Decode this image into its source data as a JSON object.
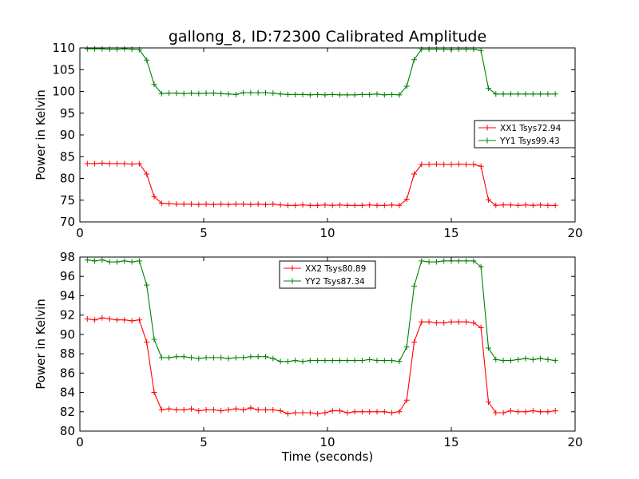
{
  "chart_data": [
    {
      "type": "line",
      "title": "gallong_8, ID:72300 Calibrated Amplitude",
      "xlabel": "",
      "ylabel": "Power in Kelvin",
      "xlim": [
        0,
        20
      ],
      "ylim": [
        70,
        110
      ],
      "xticks": [
        0,
        5,
        10,
        15,
        20
      ],
      "yticks": [
        70,
        75,
        80,
        85,
        90,
        95,
        100,
        105,
        110
      ],
      "grid": false,
      "legend_position": "right",
      "x": [
        0.3,
        0.6,
        0.9,
        1.2,
        1.5,
        1.8,
        2.1,
        2.4,
        2.7,
        3.0,
        3.3,
        3.6,
        3.9,
        4.2,
        4.5,
        4.8,
        5.1,
        5.4,
        5.7,
        6.0,
        6.3,
        6.6,
        6.9,
        7.2,
        7.5,
        7.8,
        8.1,
        8.4,
        8.7,
        9.0,
        9.3,
        9.6,
        9.9,
        10.2,
        10.5,
        10.8,
        11.1,
        11.4,
        11.7,
        12.0,
        12.3,
        12.6,
        12.9,
        13.2,
        13.5,
        13.8,
        14.1,
        14.4,
        14.7,
        15.0,
        15.3,
        15.6,
        15.9,
        16.2,
        16.5,
        16.8,
        17.1,
        17.4,
        17.7,
        18.0,
        18.3,
        18.6,
        18.9,
        19.2
      ],
      "series": [
        {
          "name": "XX1 Tsys72.94",
          "color": "#ff0000",
          "values": [
            83.4,
            83.4,
            83.5,
            83.4,
            83.4,
            83.4,
            83.3,
            83.4,
            81.0,
            75.8,
            74.3,
            74.2,
            74.1,
            74.1,
            74.1,
            74.0,
            74.1,
            74.0,
            74.1,
            74.0,
            74.1,
            74.1,
            74.0,
            74.1,
            74.0,
            74.1,
            73.9,
            73.8,
            73.8,
            73.9,
            73.8,
            73.8,
            73.9,
            73.8,
            73.9,
            73.8,
            73.8,
            73.8,
            73.9,
            73.8,
            73.8,
            73.9,
            73.8,
            75.2,
            81.0,
            83.2,
            83.2,
            83.3,
            83.2,
            83.2,
            83.3,
            83.2,
            83.2,
            82.8,
            75.1,
            73.8,
            73.9,
            73.9,
            73.8,
            73.9,
            73.8,
            73.9,
            73.8,
            73.8
          ]
        },
        {
          "name": "YY1 Tsys99.43",
          "color": "#008000",
          "values": [
            109.8,
            109.8,
            109.8,
            109.7,
            109.7,
            109.8,
            109.7,
            109.6,
            107.2,
            101.6,
            99.5,
            99.6,
            99.6,
            99.5,
            99.6,
            99.5,
            99.6,
            99.6,
            99.5,
            99.4,
            99.3,
            99.7,
            99.7,
            99.7,
            99.7,
            99.6,
            99.4,
            99.3,
            99.3,
            99.3,
            99.2,
            99.3,
            99.2,
            99.3,
            99.2,
            99.2,
            99.2,
            99.3,
            99.3,
            99.4,
            99.2,
            99.3,
            99.2,
            101.2,
            107.3,
            109.7,
            109.7,
            109.7,
            109.7,
            109.6,
            109.7,
            109.7,
            109.7,
            109.4,
            100.7,
            99.4,
            99.4,
            99.4,
            99.4,
            99.4,
            99.4,
            99.4,
            99.4,
            99.4
          ]
        }
      ]
    },
    {
      "type": "line",
      "title": "",
      "xlabel": "Time (seconds)",
      "ylabel": "Power in Kelvin",
      "xlim": [
        0,
        20
      ],
      "ylim": [
        80,
        98
      ],
      "xticks": [
        0,
        5,
        10,
        15,
        20
      ],
      "yticks": [
        80,
        82,
        84,
        86,
        88,
        90,
        92,
        94,
        96,
        98
      ],
      "grid": false,
      "legend_position": "top-center",
      "x": [
        0.3,
        0.6,
        0.9,
        1.2,
        1.5,
        1.8,
        2.1,
        2.4,
        2.7,
        3.0,
        3.3,
        3.6,
        3.9,
        4.2,
        4.5,
        4.8,
        5.1,
        5.4,
        5.7,
        6.0,
        6.3,
        6.6,
        6.9,
        7.2,
        7.5,
        7.8,
        8.1,
        8.4,
        8.7,
        9.0,
        9.3,
        9.6,
        9.9,
        10.2,
        10.5,
        10.8,
        11.1,
        11.4,
        11.7,
        12.0,
        12.3,
        12.6,
        12.9,
        13.2,
        13.5,
        13.8,
        14.1,
        14.4,
        14.7,
        15.0,
        15.3,
        15.6,
        15.9,
        16.2,
        16.5,
        16.8,
        17.1,
        17.4,
        17.7,
        18.0,
        18.3,
        18.6,
        18.9,
        19.2
      ],
      "series": [
        {
          "name": "XX2 Tsys80.89",
          "color": "#ff0000",
          "values": [
            91.6,
            91.5,
            91.7,
            91.6,
            91.5,
            91.5,
            91.4,
            91.5,
            89.2,
            84.0,
            82.2,
            82.3,
            82.2,
            82.2,
            82.3,
            82.1,
            82.2,
            82.2,
            82.1,
            82.2,
            82.3,
            82.2,
            82.4,
            82.2,
            82.2,
            82.2,
            82.1,
            81.8,
            81.9,
            81.9,
            81.9,
            81.8,
            81.9,
            82.1,
            82.1,
            81.9,
            82.0,
            82.0,
            82.0,
            82.0,
            82.0,
            81.9,
            82.0,
            83.2,
            89.2,
            91.3,
            91.3,
            91.2,
            91.2,
            91.3,
            91.3,
            91.3,
            91.2,
            90.7,
            83.0,
            81.9,
            81.9,
            82.1,
            82.0,
            82.0,
            82.1,
            82.0,
            82.0,
            82.1
          ]
        },
        {
          "name": "YY2 Tsys87.34",
          "color": "#008000",
          "values": [
            97.7,
            97.6,
            97.7,
            97.5,
            97.5,
            97.6,
            97.5,
            97.6,
            95.1,
            89.5,
            87.6,
            87.6,
            87.7,
            87.7,
            87.6,
            87.5,
            87.6,
            87.6,
            87.6,
            87.5,
            87.6,
            87.6,
            87.7,
            87.7,
            87.7,
            87.5,
            87.2,
            87.2,
            87.3,
            87.2,
            87.3,
            87.3,
            87.3,
            87.3,
            87.3,
            87.3,
            87.3,
            87.3,
            87.4,
            87.3,
            87.3,
            87.3,
            87.2,
            88.7,
            95.0,
            97.6,
            97.5,
            97.5,
            97.6,
            97.6,
            97.6,
            97.6,
            97.6,
            97.0,
            88.6,
            87.4,
            87.3,
            87.3,
            87.4,
            87.5,
            87.4,
            87.5,
            87.4,
            87.3
          ]
        }
      ]
    }
  ]
}
